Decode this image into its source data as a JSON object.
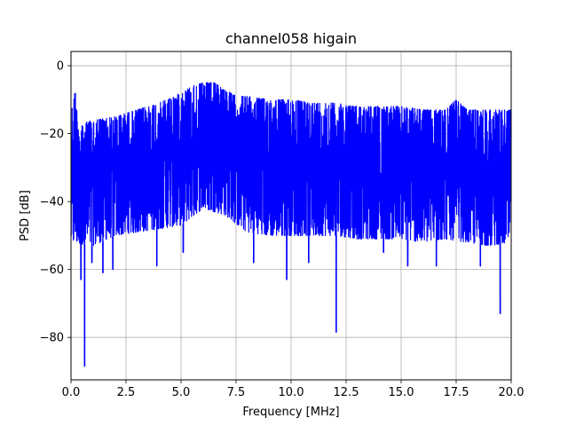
{
  "chart_data": {
    "type": "line",
    "title": "channel058 higain",
    "xlabel": "Frequency [MHz]",
    "ylabel": "PSD [dB]",
    "xlim": [
      0,
      20
    ],
    "ylim": [
      -92.5,
      4.2
    ],
    "xticks": [
      0,
      2.5,
      5,
      7.5,
      10,
      12.5,
      15,
      17.5,
      20
    ],
    "xtick_labels": [
      "0.0",
      "2.5",
      "5.0",
      "7.5",
      "10.0",
      "12.5",
      "15.0",
      "17.5",
      "20.0"
    ],
    "yticks": [
      0,
      -20,
      -40,
      -60,
      -80
    ],
    "ytick_labels": [
      "0",
      "−20",
      "−40",
      "−60",
      "−80"
    ],
    "grid": true,
    "series": [
      {
        "color": "#0000ff",
        "description": "Dense noise-like PSD trace filling a band between an upper envelope and a lower envelope, with downward spikes",
        "upper_envelope": {
          "x": [
            0,
            0.2,
            0.3,
            0.5,
            1,
            2,
            3,
            4,
            5,
            5.5,
            6,
            6.5,
            7,
            7.5,
            8,
            9,
            10,
            11,
            12,
            13,
            14,
            15,
            16,
            17,
            17.5,
            18,
            19,
            20
          ],
          "y": [
            -14,
            -7,
            -16,
            -17,
            -16,
            -15,
            -13,
            -11,
            -8,
            -6,
            -5,
            -5,
            -7,
            -9,
            -9,
            -10,
            -10,
            -11,
            -11,
            -12,
            -12,
            -12,
            -13,
            -13,
            -10,
            -13,
            -13,
            -13
          ]
        },
        "lower_envelope": {
          "x": [
            0,
            1,
            2,
            3,
            4,
            5,
            6,
            7,
            8,
            9,
            10,
            11,
            12,
            13,
            14,
            15,
            16,
            17,
            18,
            19,
            20
          ],
          "y": [
            -52,
            -53,
            -50,
            -49,
            -48,
            -47,
            -42,
            -44,
            -49,
            -50,
            -50,
            -50,
            -50,
            -51,
            -51,
            -51,
            -52,
            -51,
            -52,
            -53,
            -52
          ]
        },
        "spikes": [
          {
            "x": 0.62,
            "y": -88.5
          },
          {
            "x": 0.45,
            "y": -63
          },
          {
            "x": 0.95,
            "y": -58
          },
          {
            "x": 1.45,
            "y": -61
          },
          {
            "x": 1.9,
            "y": -60
          },
          {
            "x": 3.9,
            "y": -59
          },
          {
            "x": 5.1,
            "y": -55
          },
          {
            "x": 8.3,
            "y": -58
          },
          {
            "x": 9.8,
            "y": -63
          },
          {
            "x": 10.8,
            "y": -58
          },
          {
            "x": 12.05,
            "y": -78.5
          },
          {
            "x": 14.2,
            "y": -55
          },
          {
            "x": 15.3,
            "y": -59
          },
          {
            "x": 16.6,
            "y": -59
          },
          {
            "x": 18.6,
            "y": -59
          },
          {
            "x": 19.5,
            "y": -73
          }
        ]
      }
    ]
  }
}
